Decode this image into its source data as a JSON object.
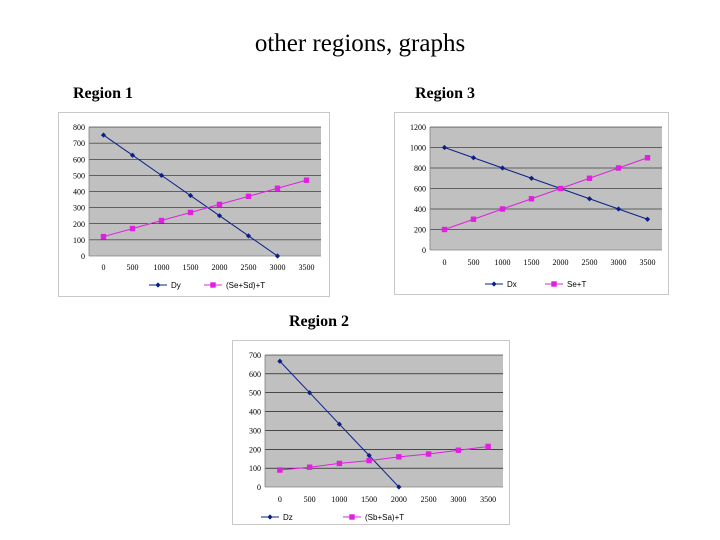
{
  "page": {
    "title": "other regions, graphs",
    "region_labels": {
      "r1": "Region 1",
      "r3": "Region 3",
      "r2": "Region 2"
    }
  },
  "colors": {
    "plot_bg": "#c0c0c0",
    "series1": "#0b1f8a",
    "series2": "#e020e0",
    "border": "#808080"
  },
  "chart_data": [
    {
      "type": "line",
      "x": [
        0,
        500,
        1000,
        1500,
        2000,
        2500,
        3000
      ],
      "xticks": [
        "0",
        "500",
        "1000",
        "1500",
        "2000",
        "2500",
        "3000",
        "3500"
      ],
      "ylim": [
        0,
        800
      ],
      "yticks": [
        "0",
        "100",
        "200",
        "300",
        "400",
        "500",
        "600",
        "700",
        "800"
      ],
      "grid": true,
      "legend": "bottom",
      "series": [
        {
          "name": "Dy",
          "values": [
            750,
            625,
            500,
            375,
            250,
            125,
            0
          ],
          "marker": "diamond"
        },
        {
          "name": "(Se+Sd)+T",
          "values": [
            120,
            170,
            220,
            270,
            320,
            370,
            420,
            470
          ],
          "x": [
            0,
            500,
            1000,
            1500,
            2000,
            2500,
            3000,
            3500
          ],
          "marker": "square"
        }
      ]
    },
    {
      "type": "line",
      "ylim": [
        0,
        1200
      ],
      "yticks": [
        "0",
        "200",
        "400",
        "600",
        "800",
        "1000",
        "1200"
      ],
      "xticks": [
        "0",
        "500",
        "1000",
        "1500",
        "2000",
        "2500",
        "3000",
        "3500"
      ],
      "grid": true,
      "legend": "bottom",
      "series": [
        {
          "name": "Dx",
          "x": [
            0,
            500,
            1000,
            1500,
            2000,
            2500,
            3000,
            3500
          ],
          "values": [
            1000,
            900,
            800,
            700,
            600,
            500,
            400,
            300
          ],
          "marker": "diamond"
        },
        {
          "name": "Se+T",
          "x": [
            0,
            500,
            1000,
            1500,
            2000,
            2500,
            3000,
            3500
          ],
          "values": [
            200,
            300,
            400,
            500,
            600,
            700,
            800,
            900
          ],
          "marker": "square"
        }
      ]
    },
    {
      "type": "line",
      "ylim": [
        0,
        700
      ],
      "yticks": [
        "0",
        "100",
        "200",
        "300",
        "400",
        "500",
        "600",
        "700"
      ],
      "xticks": [
        "0",
        "500",
        "1000",
        "1500",
        "2000",
        "2500",
        "3000",
        "3500"
      ],
      "grid": true,
      "legend": "bottom",
      "series": [
        {
          "name": "Dz",
          "x": [
            0,
            500,
            1000,
            1500,
            2000
          ],
          "values": [
            667,
            500,
            333,
            167,
            0
          ],
          "marker": "diamond"
        },
        {
          "name": "(Sb+Sa)+T",
          "x": [
            0,
            500,
            1000,
            1500,
            2000,
            2500,
            3000,
            3500
          ],
          "values": [
            90,
            105,
            125,
            140,
            160,
            175,
            195,
            215
          ],
          "marker": "square"
        }
      ]
    }
  ]
}
